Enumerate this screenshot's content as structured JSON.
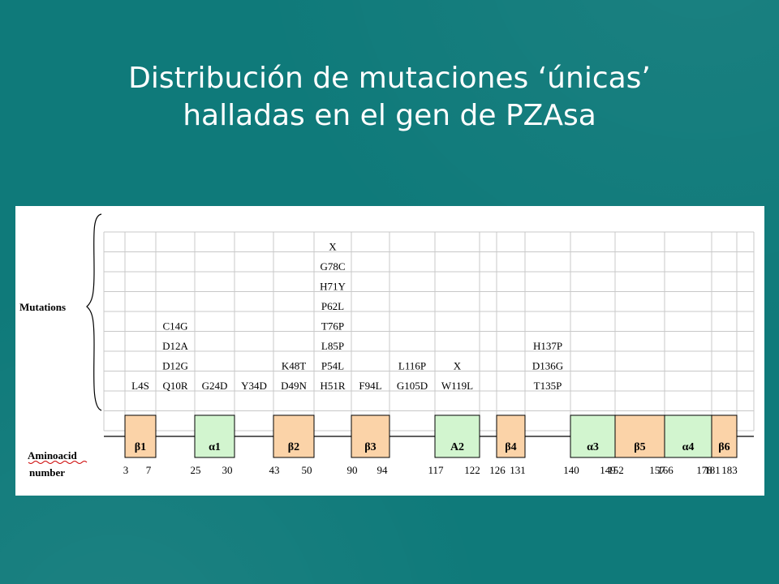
{
  "slide": {
    "title_line1": "Distribución de mutaciones ‘únicas’",
    "title_line2": "halladas en el gen de PZAsa"
  },
  "figure": {
    "label_mutations": "Mutations",
    "label_aminoacid_1": "Aminoacid",
    "label_aminoacid_2": "number",
    "columns": [
      {
        "mutations": [
          "L4S"
        ]
      },
      {
        "mutations": [
          "Q10R",
          "D12G",
          "D12A",
          "C14G"
        ]
      },
      {
        "mutations": [
          "G24D"
        ]
      },
      {
        "mutations": [
          "Y34D"
        ]
      },
      {
        "mutations": [
          "D49N",
          "K48T"
        ]
      },
      {
        "mutations": [
          "H51R",
          "P54L",
          "L85P",
          "T76P",
          "P62L",
          "H71Y",
          "G78C",
          "X"
        ]
      },
      {
        "mutations": [
          "F94L"
        ]
      },
      {
        "mutations": [
          "G105D",
          "L116P"
        ]
      },
      {
        "mutations": [
          "W119L",
          "X"
        ]
      },
      {
        "mutations": []
      },
      {
        "mutations": [
          "T135P",
          "D136G",
          "H137P"
        ]
      },
      {
        "mutations": []
      },
      {
        "mutations": []
      },
      {
        "mutations": []
      },
      {
        "mutations": []
      }
    ],
    "structures": [
      {
        "label": "β1",
        "type": "beta",
        "start": "3",
        "end": "7"
      },
      {
        "label": "α1",
        "type": "alpha",
        "start": "25",
        "end": "30"
      },
      {
        "label": "β2",
        "type": "beta",
        "start": "43",
        "end": "50"
      },
      {
        "label": "β3",
        "type": "beta",
        "start": "90",
        "end": "94"
      },
      {
        "label": "A2",
        "type": "alpha",
        "start": "117",
        "end": "122"
      },
      {
        "label": "β4",
        "type": "beta",
        "start": "126",
        "end": "131"
      },
      {
        "label": "α3",
        "type": "alpha",
        "start": "140",
        "end": "149"
      },
      {
        "label": "β5",
        "type": "beta",
        "start": "152",
        "end": "157"
      },
      {
        "label": "α4",
        "type": "alpha",
        "start": "166",
        "end": "178"
      },
      {
        "label": "β6",
        "type": "beta",
        "start": "181",
        "end": "183"
      }
    ],
    "colors": {
      "beta_fill": "#fbd3a8",
      "alpha_fill": "#d2f5cf",
      "grid_line": "#c8c8c8",
      "box_stroke": "#000000",
      "title_text": "#ffffff",
      "background": "#0f7a7a"
    }
  }
}
